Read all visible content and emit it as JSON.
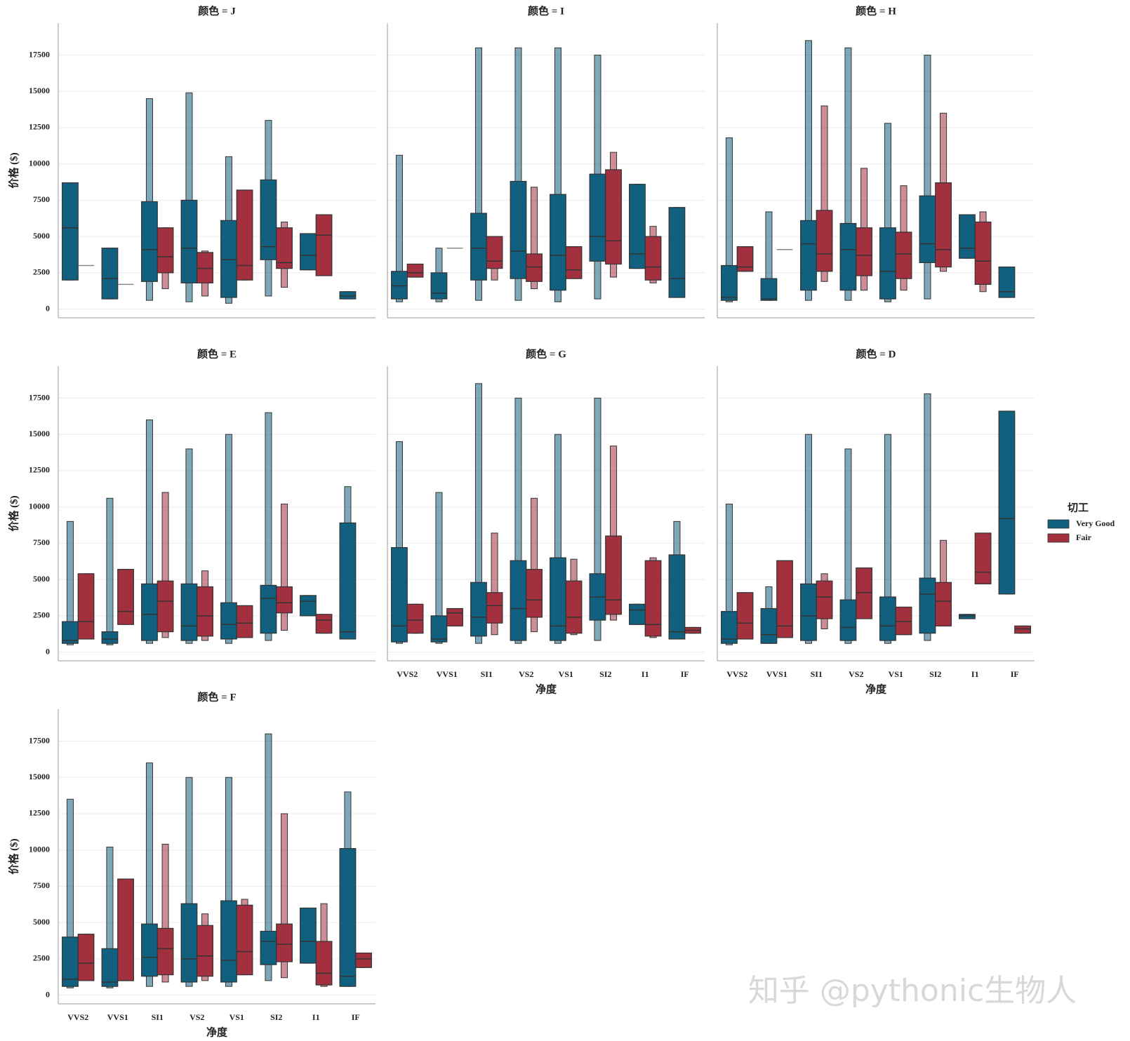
{
  "chart_data": [
    {
      "type": "boxen",
      "title": "颜色 = J",
      "y_label": "价格 ($)",
      "categories": [
        "VVS2",
        "VVS1",
        "SI1",
        "VS2",
        "VS1",
        "SI2",
        "I1",
        "IF"
      ],
      "ylim": [
        -600,
        19700
      ],
      "yticks": [
        0,
        2500,
        5000,
        7500,
        10000,
        12500,
        15000,
        17500
      ],
      "grid": true,
      "legend_title": "切工",
      "series": [
        {
          "name": "Very Good",
          "color": "#12607f",
          "q1": [
            2000,
            700,
            1900,
            1800,
            800,
            3400,
            2700,
            700
          ],
          "median": [
            5600,
            2100,
            4100,
            4200,
            3400,
            4300,
            3700,
            900
          ],
          "q3": [
            8700,
            4200,
            7400,
            7500,
            6100,
            8900,
            5200,
            1200
          ],
          "lo": [
            2000,
            700,
            600,
            500,
            400,
            900,
            2700,
            700
          ],
          "hi": [
            8700,
            4200,
            14500,
            14900,
            10500,
            13000,
            5200,
            1200
          ]
        },
        {
          "name": "Fair",
          "color": "#a3303f",
          "q1": [
            3000,
            1700,
            2500,
            1800,
            2000,
            2800,
            2300,
            null
          ],
          "median": [
            3000,
            1700,
            3600,
            2800,
            3000,
            3200,
            5100,
            null
          ],
          "q3": [
            3000,
            1700,
            5600,
            3900,
            8200,
            5600,
            6500,
            null
          ],
          "lo": [
            3000,
            1700,
            1400,
            900,
            2000,
            1500,
            2300,
            null
          ],
          "hi": [
            3000,
            1700,
            5600,
            4000,
            8200,
            6000,
            6500,
            null
          ]
        }
      ]
    },
    {
      "type": "boxen",
      "title": "颜色 = I",
      "categories": [
        "VVS2",
        "VVS1",
        "SI1",
        "VS2",
        "VS1",
        "SI2",
        "I1",
        "IF"
      ],
      "ylim": [
        -600,
        19700
      ],
      "yticks": [
        0,
        2500,
        5000,
        7500,
        10000,
        12500,
        15000,
        17500
      ],
      "grid": true,
      "series": [
        {
          "name": "Very Good",
          "color": "#12607f",
          "q1": [
            700,
            700,
            2000,
            2100,
            1300,
            3300,
            2800,
            800
          ],
          "median": [
            1600,
            1100,
            4200,
            4000,
            3700,
            5000,
            3800,
            2100
          ],
          "q3": [
            2600,
            2500,
            6600,
            8800,
            7900,
            9300,
            8600,
            7000
          ],
          "lo": [
            500,
            500,
            600,
            600,
            500,
            700,
            2800,
            800
          ],
          "hi": [
            10600,
            4200,
            18000,
            18000,
            18000,
            17500,
            8600,
            7000
          ]
        },
        {
          "name": "Fair",
          "color": "#a3303f",
          "q1": [
            2200,
            4200,
            2800,
            1900,
            2100,
            3100,
            2000,
            null
          ],
          "median": [
            2500,
            4200,
            3300,
            2900,
            2700,
            4700,
            2900,
            null
          ],
          "q3": [
            3100,
            4200,
            5000,
            3800,
            4300,
            9600,
            5000,
            null
          ],
          "lo": [
            2200,
            4200,
            2000,
            1400,
            2100,
            2200,
            1800,
            null
          ],
          "hi": [
            3100,
            4200,
            5000,
            8400,
            4300,
            10800,
            5700,
            null
          ]
        }
      ]
    },
    {
      "type": "boxen",
      "title": "颜色 = H",
      "categories": [
        "VVS2",
        "VVS1",
        "SI1",
        "VS2",
        "VS1",
        "SI2",
        "I1",
        "IF"
      ],
      "ylim": [
        -600,
        19700
      ],
      "yticks": [
        0,
        2500,
        5000,
        7500,
        10000,
        12500,
        15000,
        17500
      ],
      "grid": true,
      "series": [
        {
          "name": "Very Good",
          "color": "#12607f",
          "q1": [
            600,
            600,
            1300,
            1300,
            700,
            3200,
            3500,
            800
          ],
          "median": [
            800,
            700,
            4500,
            4100,
            2600,
            4500,
            4200,
            1200
          ],
          "q3": [
            3000,
            2100,
            6100,
            5900,
            5600,
            7800,
            6500,
            2900
          ],
          "lo": [
            500,
            600,
            600,
            600,
            500,
            700,
            3500,
            800
          ],
          "hi": [
            11800,
            6700,
            18500,
            18000,
            12800,
            17500,
            6500,
            2900
          ]
        },
        {
          "name": "Fair",
          "color": "#a3303f",
          "q1": [
            2600,
            4100,
            2600,
            2300,
            2100,
            2900,
            1700,
            null
          ],
          "median": [
            2900,
            4100,
            3800,
            3700,
            3800,
            4100,
            3300,
            null
          ],
          "q3": [
            4300,
            4100,
            6800,
            5600,
            5300,
            8700,
            6000,
            null
          ],
          "lo": [
            2600,
            4100,
            1900,
            1300,
            1300,
            2600,
            1200,
            null
          ],
          "hi": [
            4300,
            4100,
            14000,
            9700,
            8500,
            13500,
            6700,
            null
          ]
        }
      ]
    },
    {
      "type": "boxen",
      "title": "颜色 = E",
      "y_label": "价格 ($)",
      "categories": [
        "VVS2",
        "VVS1",
        "SI1",
        "VS2",
        "VS1",
        "SI2",
        "I1",
        "IF"
      ],
      "ylim": [
        -600,
        19700
      ],
      "yticks": [
        0,
        2500,
        5000,
        7500,
        10000,
        12500,
        15000,
        17500
      ],
      "grid": true,
      "series": [
        {
          "name": "Very Good",
          "color": "#12607f",
          "q1": [
            600,
            600,
            800,
            800,
            900,
            1300,
            2500,
            900
          ],
          "median": [
            800,
            900,
            2600,
            1800,
            1900,
            3700,
            3500,
            1400
          ],
          "q3": [
            2100,
            1400,
            4700,
            4700,
            3400,
            4600,
            3900,
            8900
          ],
          "lo": [
            500,
            500,
            600,
            600,
            600,
            800,
            2500,
            900
          ],
          "hi": [
            9000,
            10600,
            16000,
            14000,
            15000,
            16500,
            3900,
            11400
          ]
        },
        {
          "name": "Fair",
          "color": "#a3303f",
          "q1": [
            900,
            1900,
            1400,
            1100,
            1000,
            2700,
            1300,
            null
          ],
          "median": [
            2100,
            2800,
            3500,
            2500,
            2000,
            3400,
            2200,
            null
          ],
          "q3": [
            5400,
            5700,
            4900,
            4500,
            3200,
            4500,
            2600,
            null
          ],
          "lo": [
            900,
            1900,
            1000,
            800,
            1000,
            1500,
            1300,
            null
          ],
          "hi": [
            5400,
            5700,
            11000,
            5600,
            3200,
            10200,
            2600,
            null
          ]
        }
      ]
    },
    {
      "type": "boxen",
      "title": "颜色 = G",
      "x_label": "净度",
      "categories": [
        "VVS2",
        "VVS1",
        "SI1",
        "VS2",
        "VS1",
        "SI2",
        "I1",
        "IF"
      ],
      "ylim": [
        -600,
        19700
      ],
      "yticks": [
        0,
        2500,
        5000,
        7500,
        10000,
        12500,
        15000,
        17500
      ],
      "grid": true,
      "series": [
        {
          "name": "Very Good",
          "color": "#12607f",
          "q1": [
            700,
            700,
            1100,
            800,
            800,
            2200,
            1900,
            900
          ],
          "median": [
            1800,
            900,
            2400,
            3000,
            1800,
            3800,
            2900,
            1400
          ],
          "q3": [
            7200,
            2500,
            4800,
            6300,
            6500,
            5400,
            3300,
            6700
          ],
          "lo": [
            600,
            600,
            600,
            600,
            600,
            800,
            1900,
            900
          ],
          "hi": [
            14500,
            11000,
            18500,
            17500,
            15000,
            17500,
            3300,
            9000
          ]
        },
        {
          "name": "Fair",
          "color": "#a3303f",
          "q1": [
            1300,
            1800,
            2000,
            2400,
            1300,
            2600,
            1100,
            1300
          ],
          "median": [
            2200,
            2700,
            3200,
            3600,
            2400,
            3600,
            1900,
            1500
          ],
          "q3": [
            3300,
            3000,
            4100,
            5700,
            4900,
            8000,
            6300,
            1700
          ],
          "lo": [
            1300,
            1800,
            1200,
            1400,
            1200,
            2200,
            1000,
            1300
          ],
          "hi": [
            3300,
            3000,
            8200,
            10600,
            6400,
            14200,
            6500,
            1700
          ]
        }
      ]
    },
    {
      "type": "boxen",
      "title": "颜色 = D",
      "x_label": "净度",
      "categories": [
        "VVS2",
        "VVS1",
        "SI1",
        "VS2",
        "VS1",
        "SI2",
        "I1",
        "IF"
      ],
      "ylim": [
        -600,
        19700
      ],
      "yticks": [
        0,
        2500,
        5000,
        7500,
        10000,
        12500,
        15000,
        17500
      ],
      "grid": true,
      "series": [
        {
          "name": "Very Good",
          "color": "#12607f",
          "q1": [
            600,
            600,
            800,
            800,
            800,
            1300,
            2300,
            4000
          ],
          "median": [
            900,
            1200,
            2500,
            1700,
            1800,
            4000,
            2500,
            9200
          ],
          "q3": [
            2800,
            3000,
            4700,
            3600,
            3800,
            5100,
            2600,
            16600
          ],
          "lo": [
            500,
            600,
            600,
            600,
            600,
            800,
            2300,
            4000
          ],
          "hi": [
            10200,
            4500,
            15000,
            14000,
            15000,
            17800,
            2600,
            16600
          ]
        },
        {
          "name": "Fair",
          "color": "#a3303f",
          "q1": [
            900,
            1000,
            2300,
            2300,
            1200,
            1800,
            4700,
            1300
          ],
          "median": [
            2000,
            1800,
            3800,
            4100,
            2100,
            3500,
            5500,
            1600
          ],
          "q3": [
            4100,
            6300,
            4900,
            5800,
            3100,
            4800,
            8200,
            1800
          ],
          "lo": [
            900,
            1000,
            1600,
            2300,
            1200,
            1800,
            4700,
            1300
          ],
          "hi": [
            4100,
            6300,
            5400,
            5800,
            3100,
            7700,
            8200,
            1800
          ]
        }
      ]
    },
    {
      "type": "boxen",
      "title": "颜色 = F",
      "y_label": "价格 ($)",
      "x_label": "净度",
      "categories": [
        "VVS2",
        "VVS1",
        "SI1",
        "VS2",
        "VS1",
        "SI2",
        "I1",
        "IF"
      ],
      "ylim": [
        -600,
        19700
      ],
      "yticks": [
        0,
        2500,
        5000,
        7500,
        10000,
        12500,
        15000,
        17500
      ],
      "grid": true,
      "series": [
        {
          "name": "Very Good",
          "color": "#12607f",
          "q1": [
            600,
            600,
            1300,
            900,
            900,
            2100,
            2200,
            600
          ],
          "median": [
            1100,
            900,
            2600,
            2500,
            2400,
            3700,
            3700,
            1300
          ],
          "q3": [
            4000,
            3200,
            4900,
            6300,
            6500,
            4400,
            6000,
            10100
          ],
          "lo": [
            500,
            500,
            600,
            600,
            600,
            1000,
            2200,
            600
          ],
          "hi": [
            13500,
            10200,
            16000,
            15000,
            15000,
            18000,
            6000,
            14000
          ]
        },
        {
          "name": "Fair",
          "color": "#a3303f",
          "q1": [
            1000,
            1000,
            1400,
            1300,
            1400,
            2300,
            700,
            1900
          ],
          "median": [
            2200,
            1000,
            3200,
            2700,
            3000,
            3500,
            1500,
            2500
          ],
          "q3": [
            4200,
            8000,
            4600,
            4800,
            6200,
            4900,
            3700,
            2900
          ],
          "lo": [
            1000,
            1000,
            900,
            1000,
            1400,
            1200,
            600,
            1900
          ],
          "hi": [
            4200,
            8000,
            10400,
            5600,
            6600,
            12500,
            6300,
            2900
          ]
        }
      ]
    }
  ],
  "watermark": "知乎 @pythonic生物人"
}
